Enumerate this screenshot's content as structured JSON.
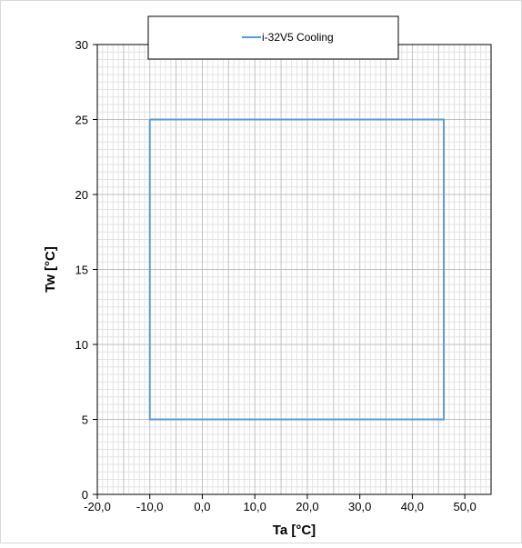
{
  "chart_data": {
    "type": "line",
    "title": "",
    "xlabel": "Ta [°C]",
    "ylabel": "Tw [°C]",
    "xlim": [
      -20,
      55
    ],
    "ylim": [
      0,
      30
    ],
    "x_ticks": [
      -20,
      -10,
      0,
      10,
      20,
      30,
      40,
      50
    ],
    "x_tick_labels": [
      "-20,0",
      "-10,0",
      "0,0",
      "10,0",
      "20,0",
      "30,0",
      "40,0",
      "50,0"
    ],
    "y_ticks": [
      0,
      5,
      10,
      15,
      20,
      25,
      30
    ],
    "y_tick_labels": [
      "0",
      "5",
      "10",
      "15",
      "20",
      "25",
      "30"
    ],
    "grid": true,
    "legend_position": "top-center",
    "series": [
      {
        "name": "i-32V5 Cooling",
        "color": "#5b9bd5",
        "x": [
          -10,
          46,
          46,
          -10,
          -10
        ],
        "y": [
          25,
          25,
          5,
          5,
          25
        ]
      }
    ]
  }
}
